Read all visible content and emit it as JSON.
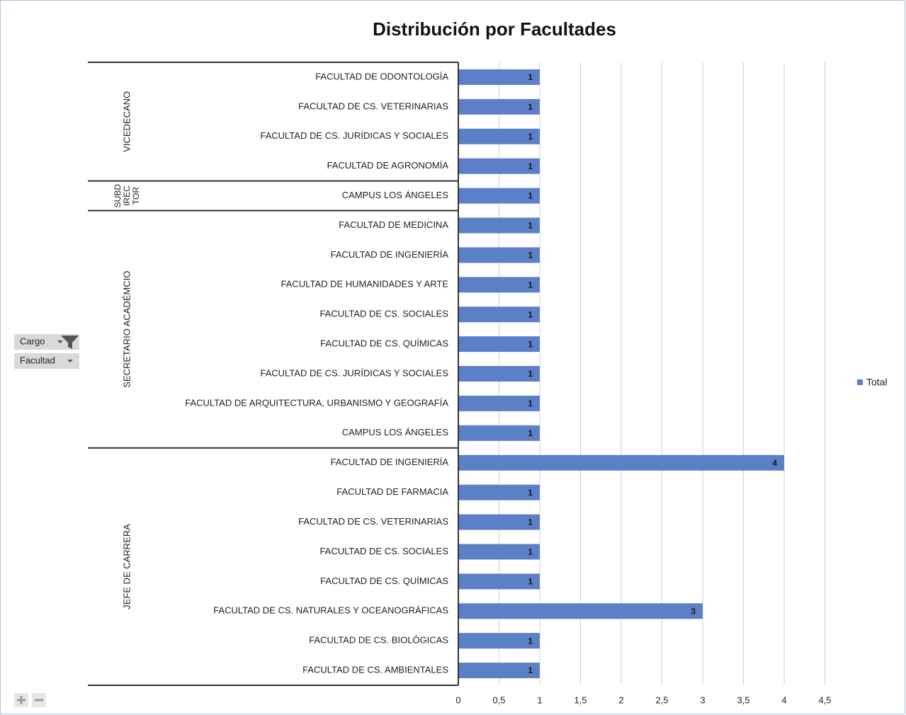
{
  "chart_data": {
    "type": "bar",
    "title": "Distribución por Facultades",
    "series_name": "Total",
    "color": "#5b80c8",
    "groups": [
      {
        "name": "VICEDECANO",
        "categories": [
          "FACULTAD DE ODONTOLOGÍA",
          "FACULTAD DE CS. VETERINARIAS",
          "FACULTAD DE CS. JURÍDICAS Y SOCIALES",
          "FACULTAD DE AGRONOMÍA"
        ],
        "values": [
          1,
          1,
          1,
          1
        ]
      },
      {
        "name": "SUBDIRECTOR",
        "categories": [
          "CAMPUS LOS ÁNGELES"
        ],
        "values": [
          1
        ]
      },
      {
        "name": "SECRETARIO ACADÉMCIO",
        "categories": [
          "FACULTAD DE MEDICINA",
          "FACULTAD DE INGENIERÍA",
          "FACULTAD DE HUMANIDADES Y ARTE",
          "FACULTAD DE CS. SOCIALES",
          "FACULTAD DE CS. QUÍMICAS",
          "FACULTAD DE CS. JURÍDICAS Y SOCIALES",
          "FACULTAD DE ARQUITECTURA, URBANISMO Y GEOGRAFÍA",
          "CAMPUS LOS ÁNGELES"
        ],
        "values": [
          1,
          1,
          1,
          1,
          1,
          1,
          1,
          1
        ]
      },
      {
        "name": "JEFE DE CARRERA",
        "categories": [
          "FACULTAD DE INGENIERÍA",
          "FACULTAD DE FARMACIA",
          "FACULTAD DE CS. VETERINARIAS",
          "FACULTAD DE CS. SOCIALES",
          "FACULTAD DE CS. QUÍMICAS",
          "FACULTAD DE CS. NATURALES Y OCEANOGRÁFICAS",
          "FACULTAD DE CS. BIOLÓGICAS",
          "FACULTAD DE CS. AMBIENTALES"
        ],
        "values": [
          4,
          1,
          1,
          1,
          1,
          3,
          1,
          1
        ]
      }
    ],
    "xlim": [
      0,
      4.5
    ],
    "xticks": [
      0,
      {
        "value": 0.5,
        "label": "0,5"
      },
      1,
      {
        "value": 1.5,
        "label": "1,5"
      },
      2,
      {
        "value": 2.5,
        "label": "2,5"
      },
      3,
      {
        "value": 3.5,
        "label": "3,5"
      },
      4,
      {
        "value": 4.5,
        "label": "4,5"
      }
    ],
    "grid": true,
    "legend_position": "right",
    "field_buttons": [
      "Cargo",
      "Facultad"
    ]
  }
}
